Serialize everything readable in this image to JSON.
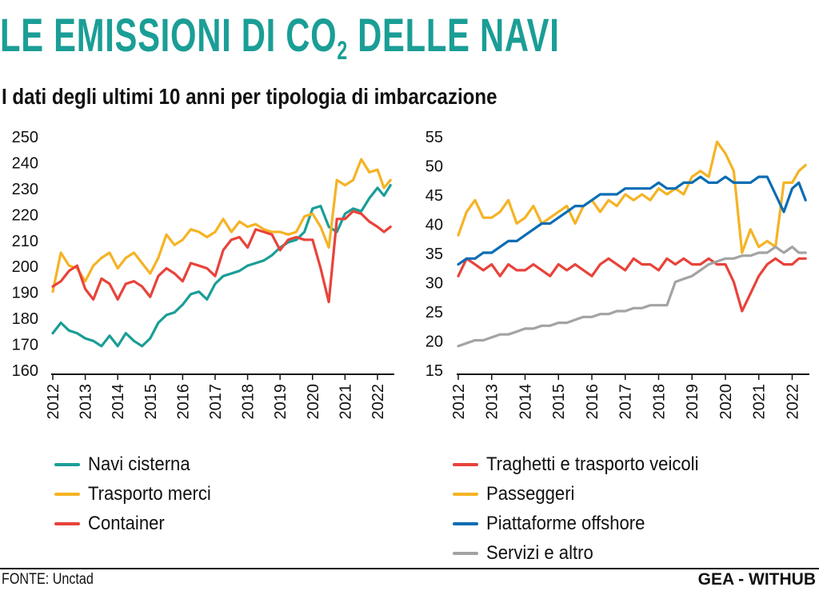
{
  "title": {
    "main": "LE EMISSIONI DI CO",
    "sub": "2",
    "rest": " DELLE NAVI"
  },
  "subtitle": "I dati degli ultimi 10 anni per tipologia di imbarcazione",
  "footer": {
    "source": "FONTE: Unctad",
    "credit": "GEA - WITHUB"
  },
  "colors": {
    "title": "#1a9e96",
    "navi_cisterna": "#1a9e96",
    "trasporto_merci": "#f5b324",
    "container": "#e8433a",
    "traghetti": "#e8433a",
    "passeggeri": "#f5b324",
    "offshore": "#0a6db3",
    "servizi": "#a3a3a3"
  },
  "chart_data": [
    {
      "type": "line",
      "ylim": [
        160,
        250
      ],
      "yticks": [
        "250",
        "240",
        "230",
        "220",
        "210",
        "200",
        "190",
        "180",
        "170",
        "160"
      ],
      "xticks": [
        "2012",
        "2013",
        "2014",
        "2015",
        "2016",
        "2017",
        "2018",
        "2019",
        "2020",
        "2021",
        "2022"
      ],
      "xlim": [
        2012.0,
        2022.42
      ],
      "grid": false,
      "legend_position": "bottom",
      "series": [
        {
          "name": "Navi cisterna",
          "color": "#1a9e96",
          "x": [
            2012.0,
            2012.25,
            2012.5,
            2012.75,
            2013.0,
            2013.25,
            2013.5,
            2013.75,
            2014.0,
            2014.25,
            2014.5,
            2014.75,
            2015.0,
            2015.25,
            2015.5,
            2015.75,
            2016.0,
            2016.25,
            2016.5,
            2016.75,
            2017.0,
            2017.25,
            2017.5,
            2017.75,
            2018.0,
            2018.25,
            2018.5,
            2018.75,
            2019.0,
            2019.25,
            2019.5,
            2019.75,
            2020.0,
            2020.25,
            2020.5,
            2020.75,
            2021.0,
            2021.25,
            2021.5,
            2021.75,
            2022.0,
            2022.2,
            2022.4
          ],
          "y": [
            174,
            178,
            175,
            174,
            172,
            171,
            169,
            173,
            169,
            174,
            171,
            169,
            172,
            178,
            181,
            182,
            185,
            189,
            190,
            187,
            193,
            196,
            197,
            198,
            200,
            201,
            202,
            204,
            207,
            209,
            210,
            213,
            222,
            223,
            215,
            213,
            220,
            222,
            221,
            226,
            230,
            227,
            231
          ]
        },
        {
          "name": "Trasporto merci",
          "color": "#f5b324",
          "x": [
            2012.0,
            2012.25,
            2012.5,
            2012.75,
            2013.0,
            2013.25,
            2013.5,
            2013.75,
            2014.0,
            2014.25,
            2014.5,
            2014.75,
            2015.0,
            2015.25,
            2015.5,
            2015.75,
            2016.0,
            2016.25,
            2016.5,
            2016.75,
            2017.0,
            2017.25,
            2017.5,
            2017.75,
            2018.0,
            2018.25,
            2018.5,
            2018.75,
            2019.0,
            2019.25,
            2019.5,
            2019.75,
            2020.0,
            2020.25,
            2020.5,
            2020.75,
            2021.0,
            2021.25,
            2021.5,
            2021.75,
            2022.0,
            2022.2,
            2022.4
          ],
          "y": [
            190,
            205,
            200,
            199,
            194,
            200,
            203,
            205,
            199,
            203,
            205,
            201,
            197,
            203,
            212,
            208,
            210,
            214,
            213,
            211,
            213,
            218,
            213,
            217,
            215,
            216,
            214,
            213,
            213,
            212,
            213,
            219,
            220,
            215,
            207,
            233,
            231,
            233,
            241,
            236,
            237,
            230,
            233
          ]
        },
        {
          "name": "Container",
          "color": "#e8433a",
          "x": [
            2012.0,
            2012.25,
            2012.5,
            2012.75,
            2013.0,
            2013.25,
            2013.5,
            2013.75,
            2014.0,
            2014.25,
            2014.5,
            2014.75,
            2015.0,
            2015.25,
            2015.5,
            2015.75,
            2016.0,
            2016.25,
            2016.5,
            2016.75,
            2017.0,
            2017.25,
            2017.5,
            2017.75,
            2018.0,
            2018.25,
            2018.5,
            2018.75,
            2019.0,
            2019.25,
            2019.5,
            2019.75,
            2020.0,
            2020.25,
            2020.5,
            2020.75,
            2021.0,
            2021.25,
            2021.5,
            2021.75,
            2022.0,
            2022.2,
            2022.4
          ],
          "y": [
            192,
            194,
            198,
            200,
            191,
            187,
            195,
            193,
            187,
            193,
            194,
            192,
            188,
            196,
            199,
            197,
            194,
            201,
            200,
            199,
            196,
            206,
            210,
            211,
            207,
            214,
            213,
            212,
            206,
            210,
            211,
            210,
            210,
            199,
            186,
            218,
            218,
            221,
            220,
            217,
            215,
            213,
            215
          ]
        }
      ]
    },
    {
      "type": "line",
      "ylim": [
        15,
        55
      ],
      "yticks": [
        "55",
        "50",
        "45",
        "40",
        "35",
        "30",
        "25",
        "20",
        "15"
      ],
      "xticks": [
        "2012",
        "2013",
        "2014",
        "2015",
        "2016",
        "2017",
        "2018",
        "2019",
        "2020",
        "2021",
        "2022"
      ],
      "xlim": [
        2012.0,
        2022.42
      ],
      "grid": false,
      "legend_position": "bottom",
      "series": [
        {
          "name": "Traghetti e trasporto veicoli",
          "color": "#e8433a",
          "x": [
            2012.0,
            2012.25,
            2012.5,
            2012.75,
            2013.0,
            2013.25,
            2013.5,
            2013.75,
            2014.0,
            2014.25,
            2014.5,
            2014.75,
            2015.0,
            2015.25,
            2015.5,
            2015.75,
            2016.0,
            2016.25,
            2016.5,
            2016.75,
            2017.0,
            2017.25,
            2017.5,
            2017.75,
            2018.0,
            2018.25,
            2018.5,
            2018.75,
            2019.0,
            2019.25,
            2019.5,
            2019.75,
            2020.0,
            2020.25,
            2020.5,
            2020.75,
            2021.0,
            2021.25,
            2021.5,
            2021.75,
            2022.0,
            2022.2,
            2022.4
          ],
          "y": [
            31,
            34,
            33,
            32,
            33,
            31,
            33,
            32,
            32,
            33,
            32,
            31,
            33,
            32,
            33,
            32,
            31,
            33,
            34,
            33,
            32,
            34,
            33,
            33,
            32,
            34,
            33,
            34,
            33,
            33,
            34,
            33,
            33,
            30,
            25,
            28,
            31,
            33,
            34,
            33,
            33,
            34,
            34
          ]
        },
        {
          "name": "Passeggeri",
          "color": "#f5b324",
          "x": [
            2012.0,
            2012.25,
            2012.5,
            2012.75,
            2013.0,
            2013.25,
            2013.5,
            2013.75,
            2014.0,
            2014.25,
            2014.5,
            2014.75,
            2015.0,
            2015.25,
            2015.5,
            2015.75,
            2016.0,
            2016.25,
            2016.5,
            2016.75,
            2017.0,
            2017.25,
            2017.5,
            2017.75,
            2018.0,
            2018.25,
            2018.5,
            2018.75,
            2019.0,
            2019.25,
            2019.5,
            2019.75,
            2020.0,
            2020.25,
            2020.5,
            2020.75,
            2021.0,
            2021.25,
            2021.5,
            2021.75,
            2022.0,
            2022.2,
            2022.4
          ],
          "y": [
            38,
            42,
            44,
            41,
            41,
            42,
            44,
            40,
            41,
            43,
            40,
            41,
            42,
            43,
            40,
            43,
            44,
            42,
            44,
            43,
            45,
            44,
            45,
            44,
            46,
            45,
            46,
            45,
            48,
            49,
            48,
            54,
            52,
            49,
            35,
            39,
            36,
            37,
            36,
            47,
            47,
            49,
            50
          ]
        },
        {
          "name": "Piattaforme offshore",
          "color": "#0a6db3",
          "x": [
            2012.0,
            2012.25,
            2012.5,
            2012.75,
            2013.0,
            2013.25,
            2013.5,
            2013.75,
            2014.0,
            2014.25,
            2014.5,
            2014.75,
            2015.0,
            2015.25,
            2015.5,
            2015.75,
            2016.0,
            2016.25,
            2016.5,
            2016.75,
            2017.0,
            2017.25,
            2017.5,
            2017.75,
            2018.0,
            2018.25,
            2018.5,
            2018.75,
            2019.0,
            2019.25,
            2019.5,
            2019.75,
            2020.0,
            2020.25,
            2020.5,
            2020.75,
            2021.0,
            2021.25,
            2021.5,
            2021.75,
            2022.0,
            2022.2,
            2022.4
          ],
          "y": [
            33,
            34,
            34,
            35,
            35,
            36,
            37,
            37,
            38,
            39,
            40,
            40,
            41,
            42,
            43,
            43,
            44,
            45,
            45,
            45,
            46,
            46,
            46,
            46,
            47,
            46,
            46,
            47,
            47,
            48,
            47,
            47,
            48,
            47,
            47,
            47,
            48,
            48,
            45,
            42,
            46,
            47,
            44
          ]
        },
        {
          "name": "Servizi e altro",
          "color": "#a3a3a3",
          "x": [
            2012.0,
            2012.25,
            2012.5,
            2012.75,
            2013.0,
            2013.25,
            2013.5,
            2013.75,
            2014.0,
            2014.25,
            2014.5,
            2014.75,
            2015.0,
            2015.25,
            2015.5,
            2015.75,
            2016.0,
            2016.25,
            2016.5,
            2016.75,
            2017.0,
            2017.25,
            2017.5,
            2017.75,
            2018.0,
            2018.25,
            2018.5,
            2018.75,
            2019.0,
            2019.25,
            2019.5,
            2019.75,
            2020.0,
            2020.25,
            2020.5,
            2020.75,
            2021.0,
            2021.25,
            2021.5,
            2021.75,
            2022.0,
            2022.2,
            2022.4
          ],
          "y": [
            19,
            19.5,
            20,
            20,
            20.5,
            21,
            21,
            21.5,
            22,
            22,
            22.5,
            22.5,
            23,
            23,
            23.5,
            24,
            24,
            24.5,
            24.5,
            25,
            25,
            25.5,
            25.5,
            26,
            26,
            26,
            30,
            30.5,
            31,
            32,
            33,
            33.5,
            34,
            34,
            34.5,
            34.5,
            35,
            35,
            36,
            35,
            36,
            35,
            35
          ]
        }
      ]
    }
  ]
}
